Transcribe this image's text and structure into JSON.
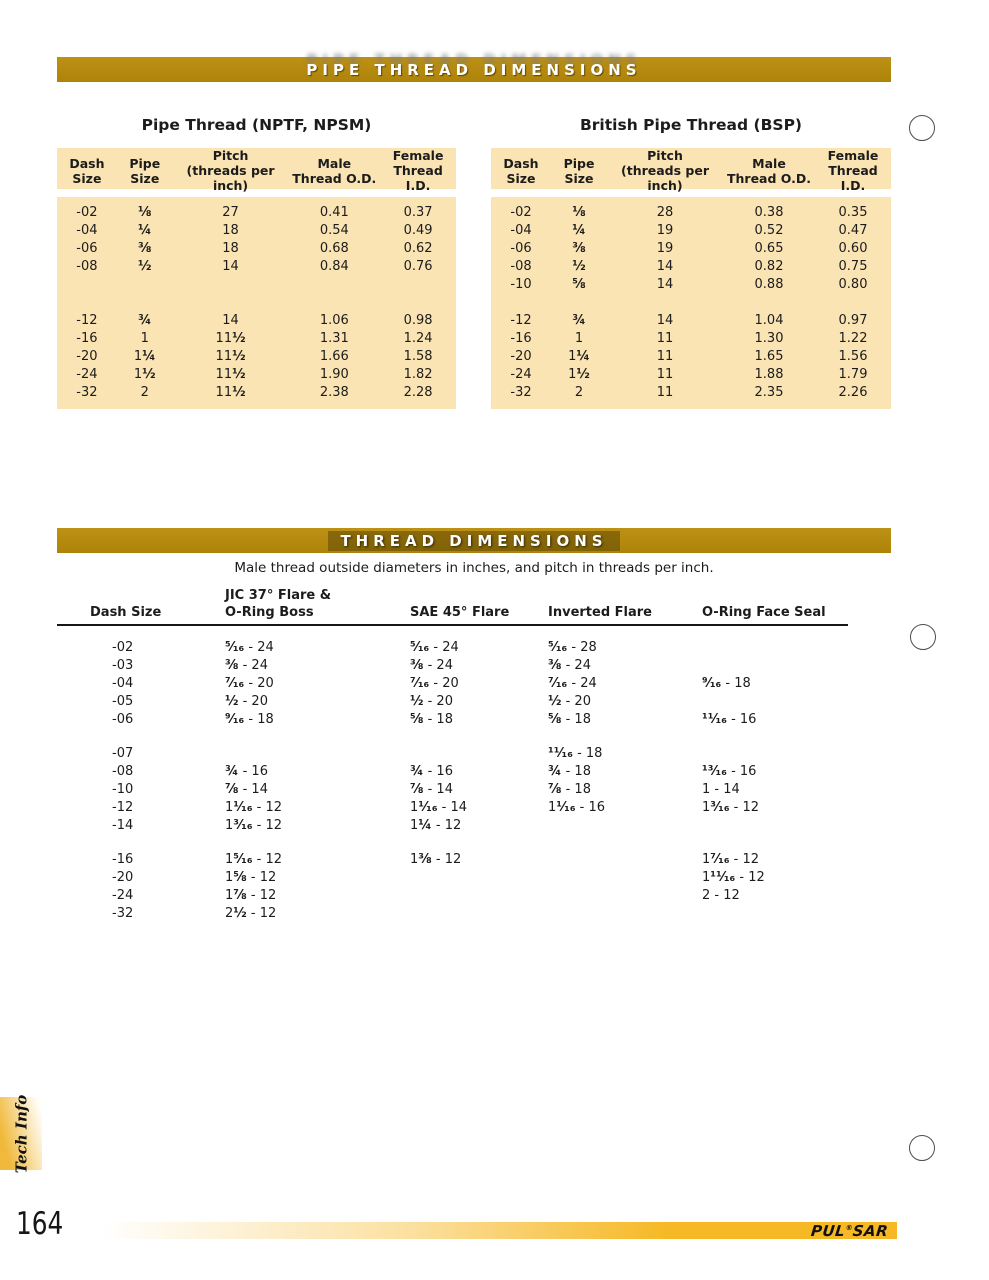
{
  "colors": {
    "bar_gold": "#B1870D",
    "table_cream": "#FBE4B3",
    "footer_gold": "#F6B824",
    "tab_gold": "#F0B93C"
  },
  "section1": {
    "title": "PIPE THREAD DIMENSIONS",
    "headers": [
      {
        "l1": "Dash",
        "l2": "Size"
      },
      {
        "l1": "Pipe",
        "l2": "Size"
      },
      {
        "l1": "Pitch",
        "l2": "(threads per inch)"
      },
      {
        "l1": "Male",
        "l2": "Thread O.D."
      },
      {
        "l1": "Female",
        "l2": "Thread I.D."
      }
    ],
    "tables": [
      {
        "title": "Pipe Thread (NPTF, NPSM)",
        "rows": [
          [
            "-02",
            "⅛",
            "27",
            "0.41",
            "0.37"
          ],
          [
            "-04",
            "¼",
            "18",
            "0.54",
            "0.49"
          ],
          [
            "-06",
            "⅜",
            "18",
            "0.68",
            "0.62"
          ],
          [
            "-08",
            "½",
            "14",
            "0.84",
            "0.76"
          ],
          [
            "",
            "",
            "",
            "",
            ""
          ],
          [
            "",
            "",
            "",
            "",
            ""
          ],
          [
            "-12",
            "¾",
            "14",
            "1.06",
            "0.98"
          ],
          [
            "-16",
            "1",
            "11½",
            "1.31",
            "1.24"
          ],
          [
            "-20",
            "1¼",
            "11½",
            "1.66",
            "1.58"
          ],
          [
            "-24",
            "1½",
            "11½",
            "1.90",
            "1.82"
          ],
          [
            "-32",
            "2",
            "11½",
            "2.38",
            "2.28"
          ]
        ]
      },
      {
        "title": "British Pipe Thread (BSP)",
        "rows": [
          [
            "-02",
            "⅛",
            "28",
            "0.38",
            "0.35"
          ],
          [
            "-04",
            "¼",
            "19",
            "0.52",
            "0.47"
          ],
          [
            "-06",
            "⅜",
            "19",
            "0.65",
            "0.60"
          ],
          [
            "-08",
            "½",
            "14",
            "0.82",
            "0.75"
          ],
          [
            "-10",
            "⅝",
            "14",
            "0.88",
            "0.80"
          ],
          [
            "",
            "",
            "",
            "",
            ""
          ],
          [
            "-12",
            "¾",
            "14",
            "1.04",
            "0.97"
          ],
          [
            "-16",
            "1",
            "11",
            "1.30",
            "1.22"
          ],
          [
            "-20",
            "1¼",
            "11",
            "1.65",
            "1.56"
          ],
          [
            "-24",
            "1½",
            "11",
            "1.88",
            "1.79"
          ],
          [
            "-32",
            "2",
            "11",
            "2.35",
            "2.26"
          ]
        ]
      }
    ]
  },
  "section2": {
    "title": "THREAD DIMENSIONS",
    "subtitle": "Male thread outside diameters in inches, and pitch in threads per inch.",
    "headers": {
      "dash": "Dash Size",
      "jic_line1": "JIC 37° Flare &",
      "jic_line2": "O-Ring Boss",
      "sae": "SAE 45° Flare",
      "inverted": "Inverted Flare",
      "oring": "O-Ring Face Seal"
    },
    "rows": [
      {
        "cells": [
          "-02",
          "⁵⁄₁₆ - 24",
          "⁵⁄₁₆ - 24",
          "⁵⁄₁₆ - 28",
          ""
        ]
      },
      {
        "cells": [
          "-03",
          "⅜ - 24",
          "⅜ - 24",
          "⅜ - 24",
          ""
        ]
      },
      {
        "cells": [
          "-04",
          "⁷⁄₁₆ - 20",
          "⁷⁄₁₆ - 20",
          "⁷⁄₁₆ - 24",
          "⁹⁄₁₆ - 18"
        ]
      },
      {
        "cells": [
          "-05",
          "½ - 20",
          "½ - 20",
          "½ - 20",
          ""
        ]
      },
      {
        "cells": [
          "-06",
          "⁹⁄₁₆ - 18",
          "⅝ - 18",
          "⅝ - 18",
          "¹¹⁄₁₆ - 16"
        ]
      },
      {
        "cells": [
          "-07",
          "",
          "",
          "¹¹⁄₁₆ - 18",
          ""
        ],
        "gap": true
      },
      {
        "cells": [
          "-08",
          "¾ - 16",
          "¾ - 16",
          "¾ - 18",
          "¹³⁄₁₆ - 16"
        ]
      },
      {
        "cells": [
          "-10",
          "⅞ - 14",
          "⅞ - 14",
          "⅞ - 18",
          "1 - 14"
        ]
      },
      {
        "cells": [
          "-12",
          "1¹⁄₁₆ - 12",
          "1¹⁄₁₆ - 14",
          "1¹⁄₁₆ - 16",
          "1³⁄₁₆ - 12"
        ]
      },
      {
        "cells": [
          "-14",
          "1³⁄₁₆ - 12",
          "1¼ - 12",
          "",
          ""
        ]
      },
      {
        "cells": [
          "-16",
          "1⁵⁄₁₆ - 12",
          "1⅜ - 12",
          "",
          "1⁷⁄₁₆ - 12"
        ],
        "gap": true
      },
      {
        "cells": [
          "-20",
          "1⅝ - 12",
          "",
          "",
          "1¹¹⁄₁₆ - 12"
        ]
      },
      {
        "cells": [
          "-24",
          "1⅞ - 12",
          "",
          "",
          "2 - 12"
        ]
      },
      {
        "cells": [
          "-32",
          "2½ - 12",
          "",
          "",
          ""
        ]
      }
    ]
  },
  "footer": {
    "tab_label": "Tech Info",
    "page_number": "164",
    "brand_left": "PUL",
    "brand_reg": "®",
    "brand_right": "SAR"
  }
}
